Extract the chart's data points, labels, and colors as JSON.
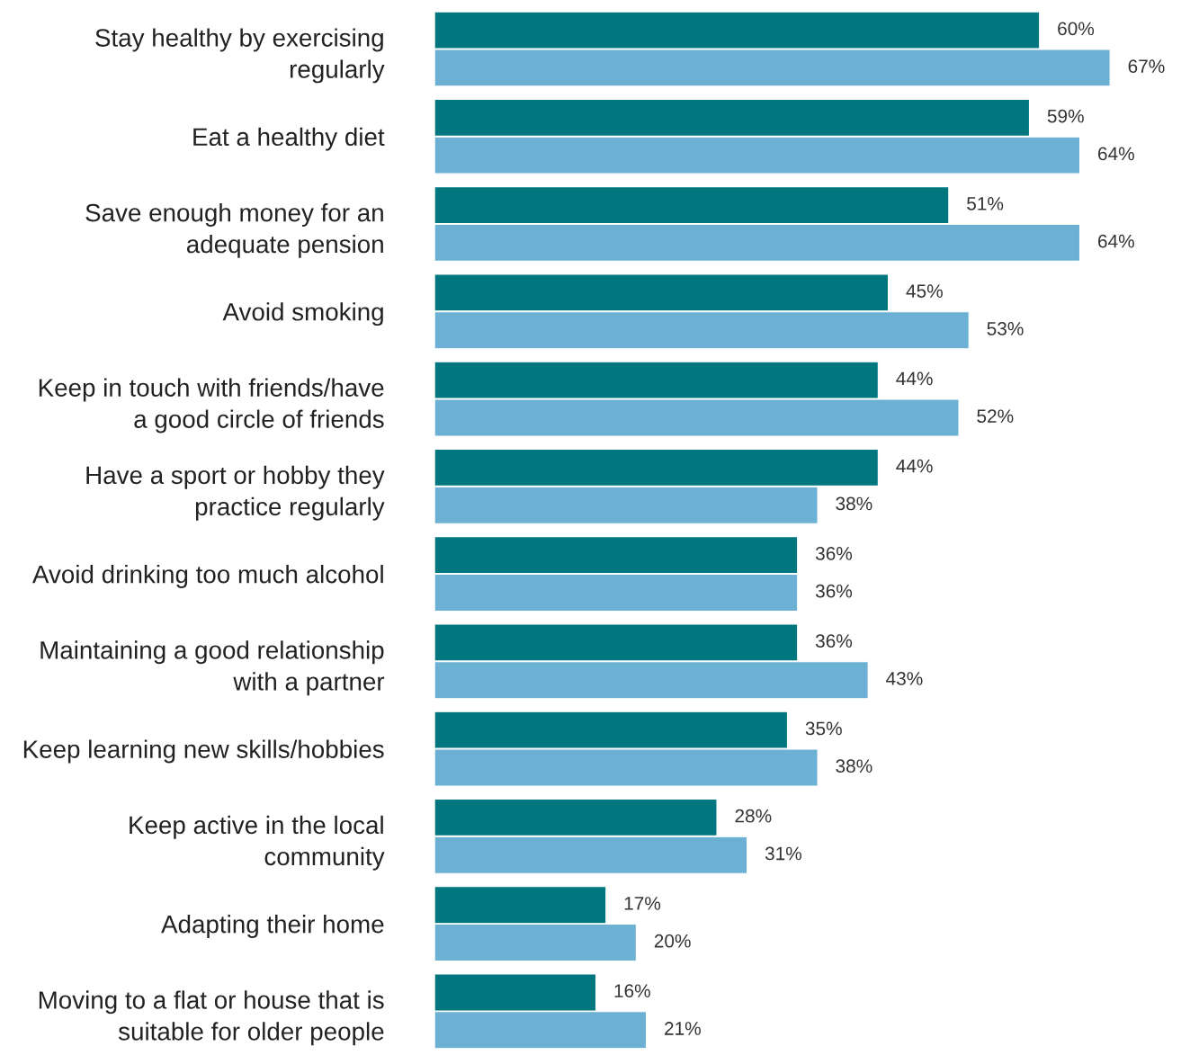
{
  "chart_data": {
    "type": "bar",
    "orientation": "horizontal",
    "categories": [
      "Stay healthy by exercising\nregularly",
      "Eat a healthy diet",
      "Save enough money for an\nadequate pension",
      "Avoid smoking",
      "Keep in touch with friends/have\na good circle of friends",
      "Have a sport or hobby they\npractice regularly",
      "Avoid drinking too much alcohol",
      "Maintaining a good relationship\nwith a partner",
      "Keep learning new skills/hobbies",
      "Keep active in the local\ncommunity",
      "Adapting their home",
      "Moving to a flat or house that is\nsuitable for older people"
    ],
    "series": [
      {
        "color": "#00767f",
        "values": [
          60,
          59,
          51,
          45,
          44,
          44,
          36,
          36,
          35,
          28,
          17,
          16
        ],
        "value_labels": [
          "60%",
          "59%",
          "51%",
          "45%",
          "44%",
          "44%",
          "36%",
          "36%",
          "35%",
          "28%",
          "17%",
          "16%"
        ]
      },
      {
        "color": "#6cb0d4",
        "values": [
          67,
          64,
          64,
          53,
          52,
          38,
          36,
          43,
          38,
          31,
          20,
          21
        ],
        "value_labels": [
          "67%",
          "64%",
          "64%",
          "53%",
          "52%",
          "38%",
          "36%",
          "43%",
          "38%",
          "31%",
          "20%",
          "21%"
        ]
      }
    ],
    "grid": false,
    "legend": false
  }
}
